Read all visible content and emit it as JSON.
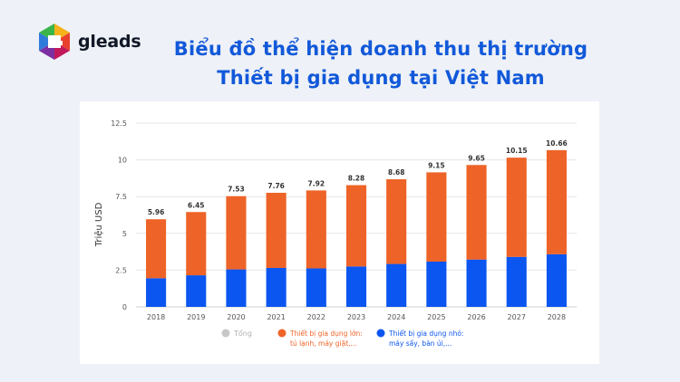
{
  "brand": {
    "name": "gleads"
  },
  "title": {
    "line1": "Biểu đồ thể hiện doanh thu thị trường",
    "line2": "Thiết bị gia dụng tại Việt Nam"
  },
  "colors": {
    "title": "#1259d9",
    "large_appliances": "#ee6327",
    "small_appliances": "#0b55f0",
    "total_legend": "#c8c8c8"
  },
  "chart_data": {
    "type": "bar",
    "stacked": true,
    "categories": [
      "2018",
      "2019",
      "2020",
      "2021",
      "2022",
      "2023",
      "2024",
      "2025",
      "2026",
      "2027",
      "2028"
    ],
    "series": [
      {
        "name": "Thiết bị gia dụng nhỏ: máy sấy, bàn ủi,...",
        "legend_lines": [
          "Thiết bị gia dụng nhỏ:",
          "máy sấy, bàn ủi,..."
        ],
        "color": "#0b55f0",
        "values": [
          1.95,
          2.15,
          2.55,
          2.65,
          2.62,
          2.75,
          2.92,
          3.08,
          3.22,
          3.4,
          3.58
        ]
      },
      {
        "name": "Thiết bị gia dụng lớn: tủ lạnh, máy giặt,...",
        "legend_lines": [
          "Thiết bị gia dụng lớn:",
          "tủ lạnh, máy giặt,..."
        ],
        "color": "#ee6327",
        "values": [
          4.01,
          4.3,
          4.98,
          5.11,
          5.3,
          5.53,
          5.76,
          6.07,
          6.43,
          6.75,
          7.08
        ]
      }
    ],
    "totals": {
      "name": "Tổng",
      "values": [
        "5.96",
        "6.45",
        "7.53",
        "7.76",
        "7.92",
        "8.28",
        "8.68",
        "9.15",
        "9.65",
        "10.15",
        "10.66"
      ]
    },
    "ylabel": "Triệu USD",
    "xlabel": "",
    "ylim": [
      0,
      12.5
    ],
    "yticks": [
      "0",
      "2.5",
      "5",
      "7.5",
      "10",
      "12.5"
    ],
    "grid": true,
    "legend_position": "bottom"
  }
}
